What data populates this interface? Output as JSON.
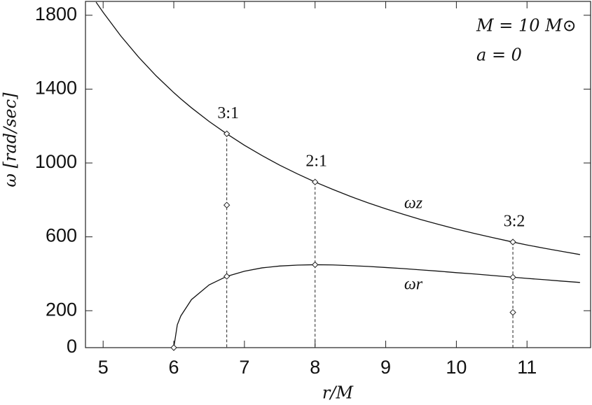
{
  "chart_data": {
    "type": "line",
    "x_label": "r/M",
    "y_label": "ω [rad/sec]",
    "annotations": [
      "M = 10 M⊙",
      "a = 0"
    ],
    "x": [
      4.9,
      5,
      5.25,
      5.5,
      5.75,
      6,
      6.05,
      6.1,
      6.25,
      6.5,
      6.75,
      7,
      7.25,
      7.5,
      7.75,
      8,
      8.25,
      8.5,
      8.75,
      9,
      9.25,
      9.5,
      9.75,
      10,
      10.25,
      10.5,
      10.75,
      11,
      11.25,
      11.5,
      11.75
    ],
    "series": [
      {
        "name": "ωz",
        "color": "#111111",
        "values": [
          1871,
          1816,
          1688,
          1574,
          1472,
          1381,
          1364,
          1347,
          1299,
          1225,
          1158,
          1096,
          1040,
          988,
          941,
          897,
          857,
          819,
          784,
          752,
          722,
          693,
          667,
          642,
          619,
          597,
          576,
          556,
          538,
          521,
          504
        ]
      },
      {
        "name": "ωr",
        "color": "#111111",
        "values": [
          null,
          null,
          null,
          null,
          null,
          0,
          124,
          172,
          260,
          340,
          386,
          414,
          432,
          442,
          447,
          449,
          448,
          444,
          440,
          434,
          428,
          421,
          414,
          406,
          399,
          391,
          383,
          375,
          368,
          360,
          353
        ]
      }
    ],
    "resonances": [
      {
        "label": "3:1",
        "x": 6.75,
        "values": [
          1158,
          772,
          386
        ]
      },
      {
        "label": "2:1",
        "x": 8,
        "values": [
          897,
          449
        ]
      },
      {
        "label": "3:2",
        "x": 10.8,
        "values": [
          572,
          381,
          191
        ]
      }
    ],
    "extra_points": [
      {
        "x": 6,
        "y": 0
      }
    ],
    "xlim": [
      4.75,
      11.9
    ],
    "ylim": [
      0,
      1875
    ],
    "xticks": [
      5,
      6,
      7,
      8,
      9,
      10,
      11
    ],
    "yticks": [
      0,
      200,
      600,
      1000,
      1400,
      1800
    ]
  }
}
